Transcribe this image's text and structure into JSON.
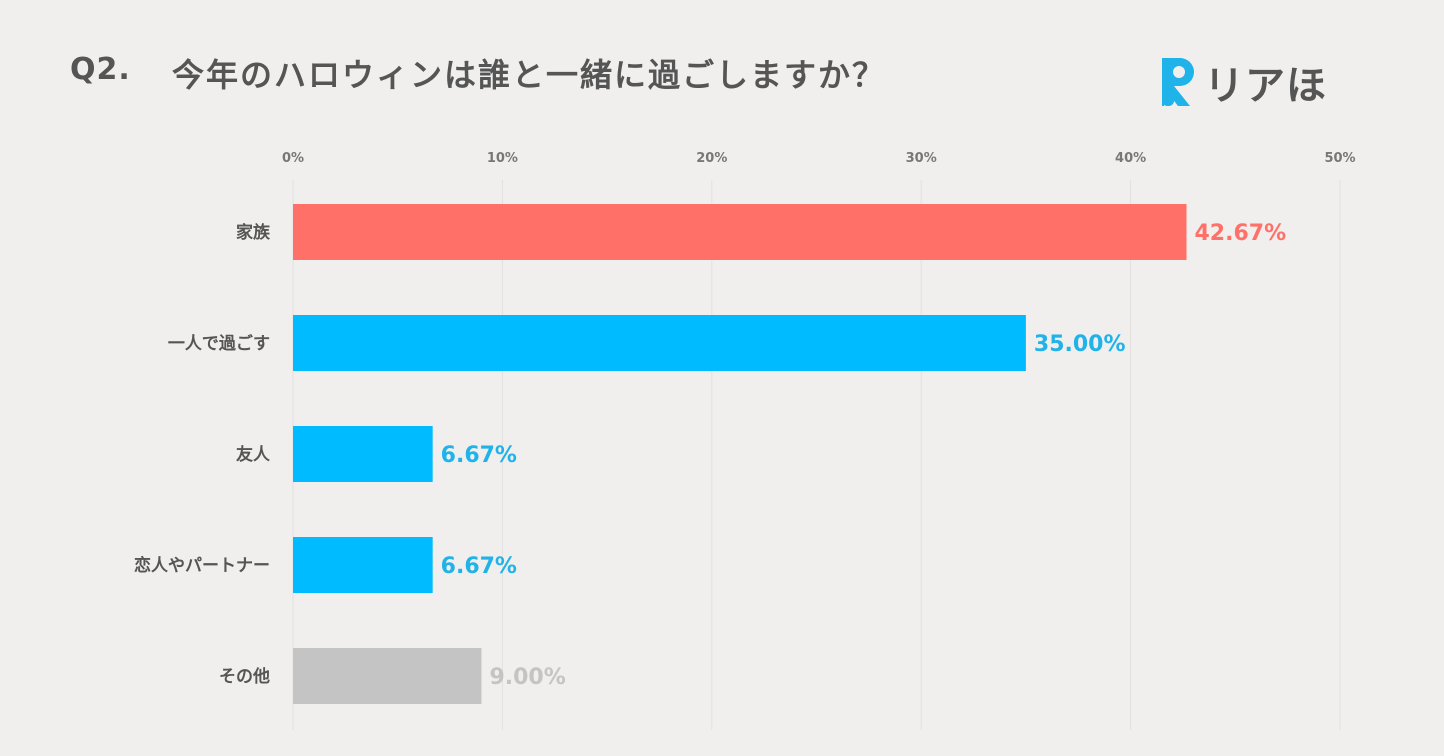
{
  "header": {
    "question_number": "Q2.",
    "question_text": "今年のハロウィンは誰と一緒に過ごしますか？",
    "logo_text": "リアほ"
  },
  "chart_data": {
    "type": "bar",
    "orientation": "horizontal",
    "title": "今年のハロウィンは誰と一緒に過ごしますか？",
    "categories": [
      "家族",
      "一人で過ごす",
      "友人",
      "恋人やパートナー",
      "その他"
    ],
    "values": [
      42.67,
      35.0,
      6.67,
      6.67,
      9.0
    ],
    "value_labels": [
      "42.67%",
      "35.00%",
      "6.67%",
      "6.67%",
      "9.00%"
    ],
    "colors": [
      "#ff7168",
      "#00bbff",
      "#00bbff",
      "#00bbff",
      "#c4c4c4"
    ],
    "label_colors": [
      "#ff7168",
      "#1fb3ea",
      "#1fb3ea",
      "#1fb3ea",
      "#c4c4c4"
    ],
    "xlim": [
      0,
      50
    ],
    "xticks": [
      0,
      10,
      20,
      30,
      40,
      50
    ],
    "xtick_labels": [
      "0%",
      "10%",
      "20%",
      "30%",
      "40%",
      "50%"
    ],
    "grid": true,
    "legend": "none"
  }
}
